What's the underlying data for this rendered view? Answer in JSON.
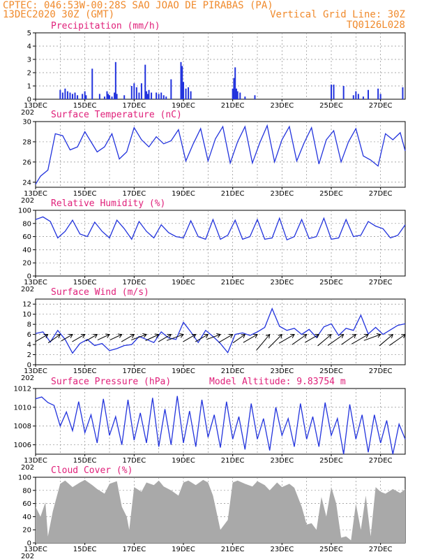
{
  "header": {
    "line1": "CPTEC:   046:53W-00:28S  SAO JOAO DE PIRABAS (PA)",
    "line2_left": "13DEC2020 30Z (GMT)",
    "line2_right": "Vertical Grid Line: 30Z",
    "line3_right": "TQ0126L028"
  },
  "x_axis": {
    "start_label": "13DEC",
    "date_labels": [
      "13DEC",
      "15DEC",
      "17DEC",
      "19DEC",
      "21DEC",
      "23DEC",
      "25DEC",
      "27DEC"
    ],
    "year_fragment": "202",
    "days_span": 15
  },
  "colors": {
    "header": "#f08a2c",
    "title": "#e0207a",
    "line": "#2233dd",
    "bar": "#2233dd",
    "cloud": "#a9a9a9",
    "grid": "#8c8c8c",
    "wind_arrow": "#000000"
  },
  "chart_data": [
    {
      "id": "precip",
      "type": "bar",
      "title": "Precipitation (mm/h)",
      "ylim": [
        0,
        5
      ],
      "yticks": [
        0,
        1,
        2,
        3,
        4,
        5
      ],
      "x_days": [
        1.0,
        1.1,
        1.2,
        1.3,
        1.4,
        1.5,
        1.6,
        1.7,
        1.9,
        2.0,
        2.05,
        2.3,
        2.6,
        2.8,
        2.9,
        2.95,
        3.0,
        3.1,
        3.2,
        3.25,
        3.3,
        3.6,
        3.9,
        4.0,
        4.1,
        4.2,
        4.3,
        4.45,
        4.5,
        4.55,
        4.6,
        4.7,
        4.9,
        5.0,
        5.1,
        5.2,
        5.3,
        5.5,
        5.9,
        5.95,
        6.0,
        6.1,
        6.2,
        6.3,
        8.0,
        8.05,
        8.1,
        8.15,
        8.2,
        8.3,
        8.5,
        8.9,
        12.0,
        12.1,
        12.5,
        12.9,
        13.0,
        13.1,
        13.3,
        13.5,
        13.9,
        14.0,
        14.9
      ],
      "values": [
        0.7,
        0.5,
        0.8,
        0.6,
        0.5,
        0.4,
        0.5,
        0.3,
        0.4,
        0.6,
        0.3,
        2.3,
        0.4,
        0.2,
        0.6,
        0.4,
        0.3,
        0.2,
        0.5,
        2.8,
        0.4,
        0.3,
        1.0,
        1.2,
        0.9,
        0.5,
        1.2,
        2.6,
        0.6,
        0.4,
        0.7,
        0.5,
        0.5,
        0.4,
        0.5,
        0.3,
        0.2,
        1.5,
        2.8,
        2.5,
        1.3,
        0.8,
        0.9,
        0.6,
        0.8,
        1.6,
        2.4,
        0.8,
        0.6,
        0.5,
        0.2,
        0.3,
        1.1,
        1.1,
        1.0,
        0.3,
        0.6,
        0.4,
        0.2,
        0.7,
        0.8,
        0.4,
        0.9
      ]
    },
    {
      "id": "temp",
      "type": "line",
      "title": "Surface Temperature (nC)",
      "ylim": [
        23.5,
        30
      ],
      "yticks": [
        24,
        26,
        28,
        30
      ],
      "x_days": [
        0.0,
        0.2,
        0.5,
        0.8,
        1.1,
        1.4,
        1.7,
        2.0,
        2.2,
        2.5,
        2.8,
        3.1,
        3.4,
        3.7,
        4.0,
        4.3,
        4.6,
        4.9,
        5.2,
        5.5,
        5.8,
        6.1,
        6.4,
        6.7,
        7.0,
        7.3,
        7.6,
        7.9,
        8.2,
        8.5,
        8.8,
        9.1,
        9.4,
        9.7,
        10.0,
        10.3,
        10.6,
        10.9,
        11.2,
        11.5,
        11.8,
        12.1,
        12.4,
        12.7,
        13.0,
        13.3,
        13.6,
        13.9,
        14.2,
        14.5,
        14.8,
        15.0
      ],
      "values": [
        23.8,
        24.6,
        25.2,
        28.8,
        28.6,
        27.2,
        27.5,
        29.0,
        28.2,
        27.0,
        27.5,
        28.8,
        26.3,
        27.0,
        29.4,
        28.2,
        27.5,
        28.5,
        27.8,
        28.1,
        29.2,
        26.1,
        27.8,
        29.3,
        26.1,
        28.3,
        29.5,
        25.9,
        28.0,
        29.5,
        25.9,
        27.9,
        29.6,
        26.0,
        28.2,
        29.5,
        26.1,
        27.9,
        29.4,
        25.8,
        28.2,
        29.1,
        26.0,
        28.0,
        29.3,
        26.6,
        26.2,
        25.6,
        28.8,
        28.2,
        28.9,
        27.1
      ]
    },
    {
      "id": "rh",
      "type": "line",
      "title": "Relative Humidity (%)",
      "ylim": [
        0,
        100
      ],
      "yticks": [
        0,
        20,
        40,
        60,
        80,
        100
      ],
      "x_days": [
        0.0,
        0.3,
        0.6,
        0.9,
        1.2,
        1.5,
        1.8,
        2.1,
        2.4,
        2.7,
        3.0,
        3.3,
        3.6,
        3.9,
        4.2,
        4.5,
        4.8,
        5.1,
        5.4,
        5.7,
        6.0,
        6.3,
        6.6,
        6.9,
        7.2,
        7.5,
        7.8,
        8.1,
        8.4,
        8.7,
        9.0,
        9.3,
        9.6,
        9.9,
        10.2,
        10.5,
        10.8,
        11.1,
        11.4,
        11.7,
        12.0,
        12.3,
        12.6,
        12.9,
        13.2,
        13.5,
        13.8,
        14.1,
        14.4,
        14.7,
        15.0
      ],
      "values": [
        86,
        90,
        83,
        58,
        68,
        85,
        64,
        60,
        82,
        68,
        58,
        85,
        72,
        56,
        83,
        68,
        58,
        78,
        66,
        60,
        58,
        84,
        60,
        56,
        86,
        56,
        62,
        85,
        56,
        60,
        86,
        56,
        58,
        88,
        55,
        60,
        86,
        57,
        60,
        88,
        56,
        58,
        86,
        60,
        62,
        83,
        76,
        72,
        58,
        62,
        78
      ]
    },
    {
      "id": "wind",
      "type": "line",
      "title": "Surface Wind (m/s)",
      "ylim": [
        0,
        13
      ],
      "yticks": [
        0,
        2,
        4,
        6,
        8,
        10,
        12
      ],
      "x_days": [
        0.0,
        0.3,
        0.6,
        0.9,
        1.2,
        1.5,
        1.8,
        2.1,
        2.4,
        2.7,
        3.0,
        3.3,
        3.6,
        3.9,
        4.2,
        4.5,
        4.8,
        5.1,
        5.4,
        5.7,
        6.0,
        6.3,
        6.6,
        6.9,
        7.2,
        7.5,
        7.8,
        8.1,
        8.4,
        8.7,
        9.0,
        9.3,
        9.6,
        9.9,
        10.2,
        10.5,
        10.8,
        11.1,
        11.4,
        11.7,
        12.0,
        12.3,
        12.6,
        12.9,
        13.2,
        13.5,
        13.8,
        14.1,
        14.4,
        14.7,
        15.0
      ],
      "values": [
        6.2,
        6.5,
        4.5,
        6.8,
        5.0,
        2.3,
        4.2,
        5.0,
        3.8,
        4.2,
        2.8,
        3.2,
        3.8,
        4.0,
        5.6,
        5.0,
        4.4,
        6.5,
        5.3,
        5.0,
        8.4,
        6.5,
        4.4,
        6.8,
        5.6,
        4.2,
        2.4,
        6.0,
        6.3,
        5.8,
        6.5,
        7.4,
        11.1,
        7.6,
        6.8,
        7.2,
        6.0,
        7.0,
        5.4,
        7.5,
        8.1,
        5.8,
        7.2,
        6.8,
        9.8,
        6.1,
        7.4,
        6.0,
        6.9,
        7.8,
        8.1
      ],
      "arrow_days": [
        0.5,
        1.0,
        1.5,
        2.0,
        2.5,
        3.0,
        3.5,
        4.0,
        4.5,
        5.0,
        5.5,
        6.0,
        6.5,
        7.0,
        7.5,
        8.0,
        8.5,
        9.0,
        9.5,
        10.0,
        10.5,
        11.0,
        11.5,
        12.0,
        12.5,
        13.0,
        13.5,
        14.0,
        14.5,
        15.0
      ],
      "arrow_dirs_deg": [
        210,
        215,
        210,
        210,
        210,
        205,
        205,
        210,
        200,
        205,
        210,
        200,
        210,
        210,
        200,
        210,
        215,
        210,
        230,
        225,
        210,
        215,
        210,
        220,
        215,
        215,
        210,
        200,
        220,
        215
      ],
      "arrow_speeds": [
        5,
        5,
        4,
        5,
        4,
        4,
        4,
        5,
        6,
        5,
        5,
        7,
        5,
        5,
        5,
        6,
        5,
        6,
        9,
        8,
        7,
        7,
        6,
        7,
        8,
        7,
        8,
        7,
        7,
        8
      ]
    },
    {
      "id": "pres",
      "type": "line",
      "title": "Surface Pressure (hPa)",
      "annotation": "Model Altitude: 9.83754 m",
      "ylim": [
        1005,
        1012
      ],
      "yticks": [
        1006,
        1008,
        1010,
        1012
      ],
      "x_days": [
        0.0,
        0.25,
        0.5,
        0.75,
        1.0,
        1.25,
        1.5,
        1.75,
        2.0,
        2.25,
        2.5,
        2.75,
        3.0,
        3.25,
        3.5,
        3.75,
        4.0,
        4.25,
        4.5,
        4.75,
        5.0,
        5.25,
        5.5,
        5.75,
        6.0,
        6.25,
        6.5,
        6.75,
        7.0,
        7.25,
        7.5,
        7.75,
        8.0,
        8.25,
        8.5,
        8.75,
        9.0,
        9.25,
        9.5,
        9.75,
        10.0,
        10.25,
        10.5,
        10.75,
        11.0,
        11.25,
        11.5,
        11.75,
        12.0,
        12.25,
        12.5,
        12.75,
        13.0,
        13.25,
        13.5,
        13.75,
        14.0,
        14.25,
        14.5,
        14.75,
        15.0
      ],
      "values": [
        1010.9,
        1011.1,
        1010.5,
        1010.2,
        1008.0,
        1009.5,
        1007.5,
        1010.6,
        1007.3,
        1009.2,
        1006.2,
        1010.9,
        1007.0,
        1009.0,
        1006.0,
        1010.8,
        1006.5,
        1009.4,
        1006.2,
        1011.0,
        1005.8,
        1009.8,
        1006.0,
        1011.2,
        1006.2,
        1009.6,
        1005.8,
        1010.8,
        1006.8,
        1009.2,
        1005.7,
        1010.6,
        1006.6,
        1009.0,
        1005.5,
        1010.4,
        1006.6,
        1008.8,
        1005.4,
        1010.0,
        1007.0,
        1008.8,
        1005.8,
        1010.4,
        1006.6,
        1009.0,
        1005.8,
        1010.5,
        1007.0,
        1008.8,
        1005.0,
        1010.3,
        1006.6,
        1009.2,
        1005.2,
        1009.2,
        1006.2,
        1008.6,
        1005.0,
        1008.2,
        1006.6
      ]
    },
    {
      "id": "cloud",
      "type": "area",
      "title": "Cloud Cover (%)",
      "ylim": [
        0,
        100
      ],
      "yticks": [
        0,
        20,
        40,
        60,
        80,
        100
      ],
      "x_days": [
        0.0,
        0.2,
        0.4,
        0.5,
        0.7,
        1.0,
        1.2,
        1.5,
        1.8,
        2.0,
        2.3,
        2.5,
        2.8,
        3.0,
        3.3,
        3.5,
        3.7,
        3.8,
        4.0,
        4.3,
        4.5,
        4.8,
        5.0,
        5.2,
        5.5,
        5.8,
        6.0,
        6.2,
        6.5,
        6.8,
        7.0,
        7.2,
        7.5,
        7.8,
        8.0,
        8.2,
        8.5,
        8.8,
        9.0,
        9.3,
        9.5,
        9.8,
        10.0,
        10.3,
        10.5,
        10.8,
        11.0,
        11.2,
        11.4,
        11.6,
        11.8,
        12.0,
        12.2,
        12.4,
        12.6,
        12.8,
        13.0,
        13.2,
        13.4,
        13.6,
        13.8,
        14.0,
        14.2,
        14.5,
        14.8,
        15.0
      ],
      "values": [
        55,
        40,
        62,
        10,
        48,
        90,
        95,
        85,
        92,
        96,
        88,
        82,
        75,
        90,
        94,
        55,
        40,
        20,
        85,
        78,
        92,
        88,
        95,
        86,
        80,
        72,
        92,
        95,
        88,
        96,
        92,
        72,
        20,
        35,
        92,
        95,
        90,
        86,
        94,
        88,
        80,
        92,
        85,
        90,
        84,
        55,
        28,
        30,
        20,
        70,
        40,
        85,
        60,
        8,
        10,
        4,
        60,
        20,
        72,
        10,
        85,
        78,
        75,
        82,
        76,
        82
      ]
    }
  ]
}
